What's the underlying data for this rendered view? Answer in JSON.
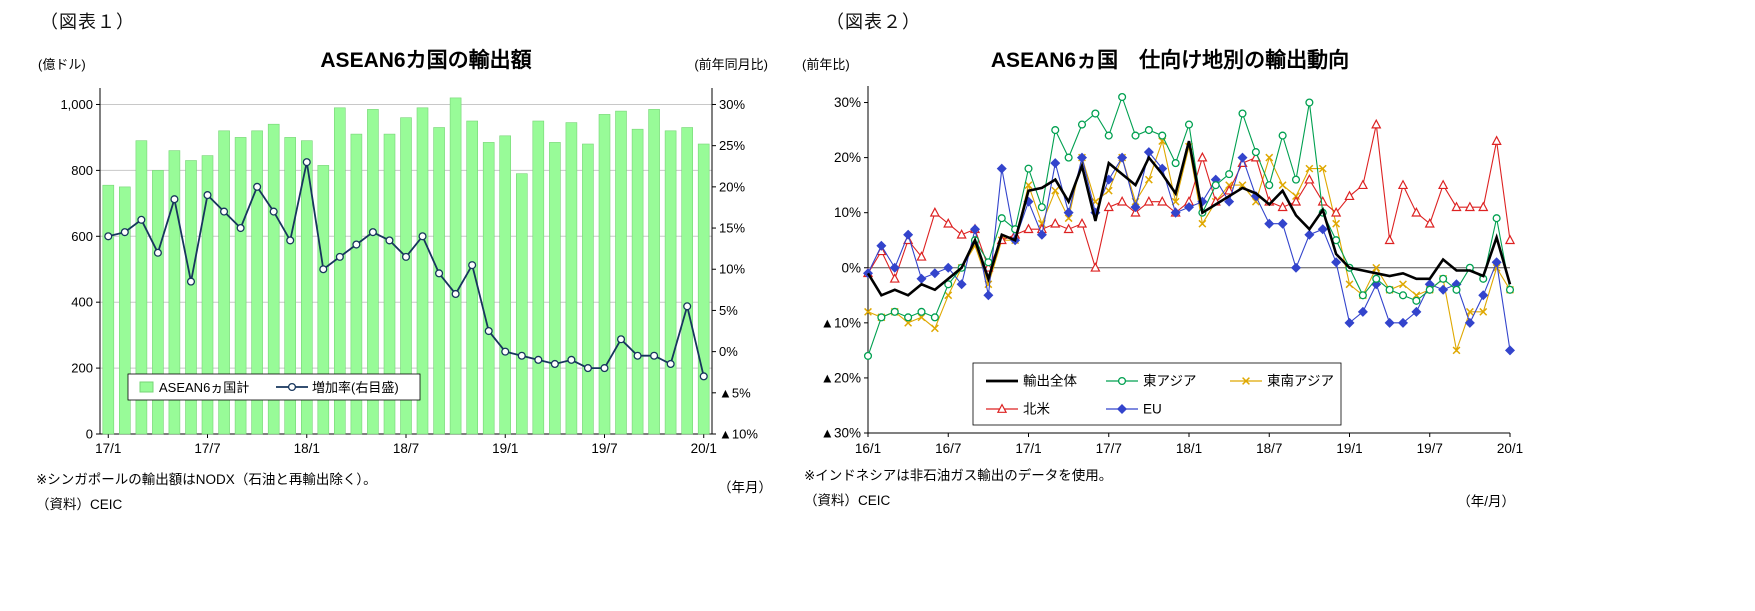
{
  "fig1": {
    "caption": "（図表１）",
    "title": "ASEAN6カ国の輸出額",
    "unit_left": "(億ドル)",
    "unit_right": "(前年同月比)",
    "unit_x": "（年月）",
    "note": "※シンガポールの輸出額はNODX（石油と再輸出除く）。",
    "source": "（資料）CEIC"
  },
  "fig2": {
    "caption": "（図表２）",
    "title": "ASEAN6ヵ国　仕向け地別の輸出動向",
    "unit_left": "(前年比)",
    "unit_x": "（年/月）",
    "note": "※インドネシアは非石油ガス輸出のデータを使用。",
    "source": "（資料）CEIC"
  },
  "chart_data": [
    {
      "type": "bar",
      "title": "ASEAN6カ国の輸出額",
      "categories": [
        "17/1",
        "17/2",
        "17/3",
        "17/4",
        "17/5",
        "17/6",
        "17/7",
        "17/8",
        "17/9",
        "17/10",
        "17/11",
        "17/12",
        "18/1",
        "18/2",
        "18/3",
        "18/4",
        "18/5",
        "18/6",
        "18/7",
        "18/8",
        "18/9",
        "18/10",
        "18/11",
        "18/12",
        "19/1",
        "19/2",
        "19/3",
        "19/4",
        "19/5",
        "19/6",
        "19/7",
        "19/8",
        "19/9",
        "19/10",
        "19/11",
        "19/12",
        "20/1"
      ],
      "x_tick_every": 6,
      "left_axis": {
        "label": "(億ドル)",
        "min": 0,
        "max": 1050,
        "ticks": [
          {
            "v": 0,
            "t": "0"
          },
          {
            "v": 200,
            "t": "200"
          },
          {
            "v": 400,
            "t": "400"
          },
          {
            "v": 600,
            "t": "600"
          },
          {
            "v": 800,
            "t": "800"
          },
          {
            "v": 1000,
            "t": "1,000"
          }
        ]
      },
      "right_axis": {
        "label": "(前年同月比)",
        "min": -10,
        "max": 32,
        "ticks": [
          {
            "v": 30,
            "t": "30%"
          },
          {
            "v": 25,
            "t": "25%"
          },
          {
            "v": 20,
            "t": "20%"
          },
          {
            "v": 15,
            "t": "15%"
          },
          {
            "v": 10,
            "t": "10%"
          },
          {
            "v": 5,
            "t": "5%"
          },
          {
            "v": 0,
            "t": "0%"
          },
          {
            "v": -5,
            "t": "▲5%"
          },
          {
            "v": -10,
            "t": "▲10%"
          }
        ]
      },
      "series": [
        {
          "name": "ASEAN6ヵ国計",
          "type": "bar",
          "axis": "left",
          "color": "#98FB98",
          "border": "#76d476",
          "values": [
            755,
            750,
            890,
            800,
            860,
            830,
            845,
            920,
            900,
            920,
            940,
            900,
            890,
            815,
            990,
            910,
            985,
            910,
            960,
            990,
            930,
            1020,
            950,
            885,
            905,
            790,
            950,
            885,
            945,
            880,
            970,
            980,
            925,
            985,
            920,
            930,
            880
          ]
        },
        {
          "name": "増加率(右目盛)",
          "type": "line",
          "axis": "right",
          "color": "#17365D",
          "marker": "circle-open",
          "values": [
            14,
            14.5,
            16,
            12,
            18.5,
            8.5,
            19,
            17,
            15,
            20,
            17,
            13.5,
            23,
            10,
            11.5,
            13,
            14.5,
            13.5,
            11.5,
            14,
            9.5,
            7,
            10.5,
            2.5,
            0,
            -0.5,
            -1,
            -1.5,
            -1,
            -2,
            -2,
            1.5,
            -0.5,
            -0.5,
            -1.5,
            5.5,
            -3
          ]
        }
      ]
    },
    {
      "type": "line",
      "title": "ASEAN6ヵ国　仕向け地別の輸出動向",
      "categories": [
        "16/1",
        "16/2",
        "16/3",
        "16/4",
        "16/5",
        "16/6",
        "16/7",
        "16/8",
        "16/9",
        "16/10",
        "16/11",
        "16/12",
        "17/1",
        "17/2",
        "17/3",
        "17/4",
        "17/5",
        "17/6",
        "17/7",
        "17/8",
        "17/9",
        "17/10",
        "17/11",
        "17/12",
        "18/1",
        "18/2",
        "18/3",
        "18/4",
        "18/5",
        "18/6",
        "18/7",
        "18/8",
        "18/9",
        "18/10",
        "18/11",
        "18/12",
        "19/1",
        "19/2",
        "19/3",
        "19/4",
        "19/5",
        "19/6",
        "19/7",
        "19/8",
        "19/9",
        "19/10",
        "19/11",
        "19/12",
        "20/1"
      ],
      "x_tick_every": 6,
      "y_axis": {
        "label": "(前年比)",
        "min": -30,
        "max": 33,
        "ticks": [
          {
            "v": 30,
            "t": "30%"
          },
          {
            "v": 20,
            "t": "20%"
          },
          {
            "v": 10,
            "t": "10%"
          },
          {
            "v": 0,
            "t": "0%"
          },
          {
            "v": -10,
            "t": "▲10%"
          },
          {
            "v": -20,
            "t": "▲20%"
          },
          {
            "v": -30,
            "t": "▲30%"
          }
        ]
      },
      "series": [
        {
          "name": "輸出全体",
          "color": "#000000",
          "marker": "none",
          "width": 2.6,
          "values": [
            -1,
            -5,
            -4,
            -5,
            -3,
            -4,
            -2,
            0,
            5,
            -2,
            6,
            5,
            14,
            14.5,
            16,
            12,
            18.5,
            8.5,
            19,
            17,
            15,
            20,
            17,
            13.5,
            23,
            10,
            11.5,
            13,
            14.5,
            13.5,
            11.5,
            14,
            9.5,
            7,
            10.5,
            2.5,
            0,
            -0.5,
            -1,
            -1.5,
            -1,
            -2,
            -2,
            1.5,
            -0.5,
            -0.5,
            -1.5,
            5.5,
            -3
          ]
        },
        {
          "name": "東アジア",
          "color": "#00A050",
          "marker": "circle-open",
          "width": 1.1,
          "values": [
            -16,
            -9,
            -8,
            -9,
            -8,
            -9,
            -3,
            0,
            5,
            1,
            9,
            7,
            18,
            11,
            25,
            20,
            26,
            28,
            24,
            31,
            24,
            25,
            24,
            19,
            26,
            10,
            15,
            17,
            28,
            21,
            15,
            24,
            16,
            30,
            10,
            5,
            0,
            -5,
            -2,
            -4,
            -5,
            -6,
            -4,
            -2,
            -4,
            0,
            -2,
            9,
            -4
          ]
        },
        {
          "name": "東南アジア",
          "color": "#DFA800",
          "marker": "x",
          "width": 1.1,
          "values": [
            -8,
            -9,
            -8,
            -10,
            -9,
            -11,
            -5,
            0,
            4,
            -3,
            5,
            5,
            15,
            8,
            14,
            9,
            20,
            12,
            14,
            20,
            12,
            16,
            23,
            12,
            22,
            8,
            12,
            15,
            15,
            12,
            20,
            15,
            13,
            18,
            18,
            8,
            -3,
            -5,
            0,
            -4,
            -3,
            -5,
            -4,
            -2,
            -15,
            -8,
            -8,
            0,
            -4
          ]
        },
        {
          "name": "北米",
          "color": "#DD2222",
          "marker": "triangle-open",
          "width": 1.1,
          "values": [
            -1,
            3,
            -2,
            5,
            2,
            10,
            8,
            6,
            7,
            0,
            5,
            6,
            7,
            7,
            8,
            7,
            8,
            0,
            11,
            12,
            10,
            12,
            12,
            10,
            12,
            20,
            12,
            14,
            19,
            20,
            12,
            11,
            12,
            16,
            12,
            10,
            13,
            15,
            26,
            5,
            15,
            10,
            8,
            15,
            11,
            11,
            11,
            23,
            5
          ]
        },
        {
          "name": "EU",
          "color": "#3344CC",
          "marker": "diamond",
          "width": 1.1,
          "values": [
            -1,
            4,
            0,
            6,
            -2,
            -1,
            0,
            -3,
            7,
            -5,
            18,
            5,
            12,
            6,
            19,
            10,
            20,
            10,
            16,
            20,
            11,
            21,
            18,
            10,
            11,
            12,
            16,
            12,
            20,
            13,
            8,
            8,
            0,
            6,
            7,
            1,
            -10,
            -8,
            -3,
            -10,
            -10,
            -8,
            -3,
            -4,
            -3,
            -10,
            -5,
            1,
            -15
          ]
        }
      ]
    }
  ]
}
